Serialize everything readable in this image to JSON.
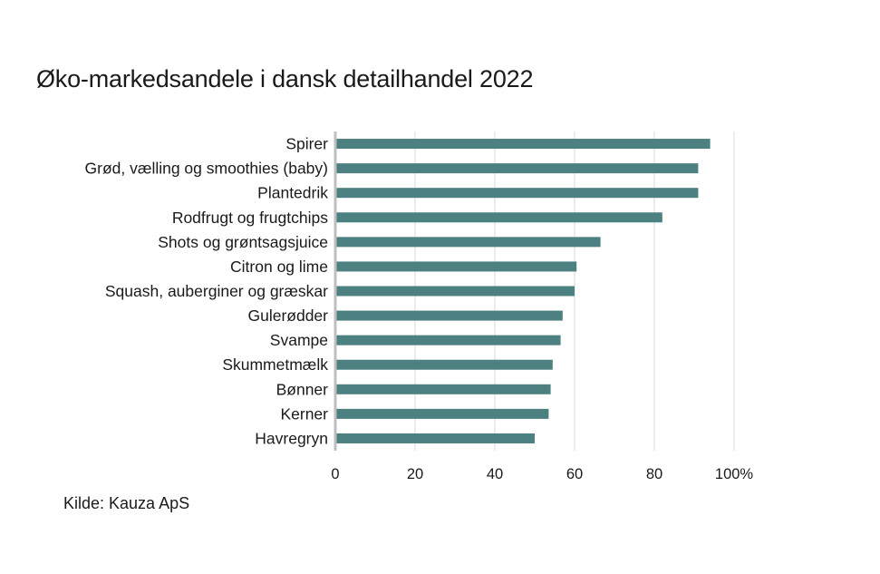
{
  "chart_data": {
    "type": "bar",
    "orientation": "horizontal",
    "title": "Øko-markedsandele i dansk detailhandel 2022",
    "categories": [
      "Spirer",
      "Grød, vælling og smoothies (baby)",
      "Plantedrik",
      "Rodfrugt og frugtchips",
      "Shots og grøntsagsjuice",
      "Citron og lime",
      "Squash, auberginer og græskar",
      "Gulerødder",
      "Svampe",
      "Skummetmælk",
      "Bønner",
      "Kerner",
      "Havregryn"
    ],
    "values": [
      94,
      91,
      91,
      82,
      66.5,
      60.5,
      60,
      57,
      56.5,
      54.5,
      54,
      53.5,
      50
    ],
    "xlim": [
      0,
      100
    ],
    "xticks": [
      0,
      20,
      40,
      60,
      80,
      100
    ],
    "xtick_labels": [
      "0",
      "20",
      "40",
      "60",
      "80",
      "100%"
    ],
    "xlabel": "",
    "ylabel": "",
    "grid": true,
    "bar_color": "#4d8080",
    "grid_color": "#d9d9d9",
    "axis_color": "#bfbfbf"
  },
  "source": "Kilde: Kauza ApS"
}
